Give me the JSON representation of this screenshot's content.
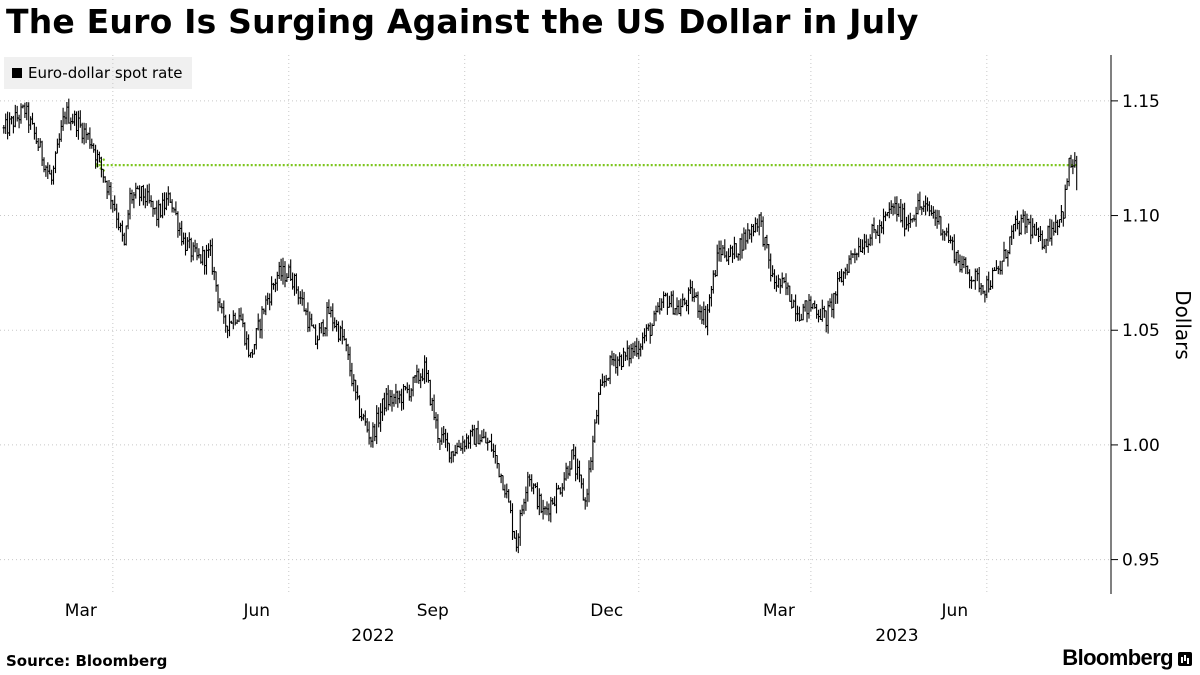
{
  "chart_data": {
    "type": "line",
    "title": "The Euro Is Surging Against the US Dollar in July",
    "ylabel": "Dollars",
    "ylim": [
      0.935,
      1.17
    ],
    "yticks": [
      0.95,
      1.0,
      1.05,
      1.1,
      1.15
    ],
    "ytick_labels": [
      "0.95",
      "1.00",
      "1.05",
      "1.10",
      "1.15"
    ],
    "xlim": [
      "2022-01-01",
      "2023-07-26"
    ],
    "xticks": [
      {
        "date": "2022-03-01",
        "label": "Mar"
      },
      {
        "date": "2022-06-01",
        "label": "Jun"
      },
      {
        "date": "2022-09-01",
        "label": "Sep"
      },
      {
        "date": "2022-12-01",
        "label": "Dec"
      },
      {
        "date": "2023-03-01",
        "label": "Mar"
      },
      {
        "date": "2023-06-01",
        "label": "Jun"
      }
    ],
    "year_labels": [
      {
        "date": "2022-07-15",
        "label": "2022"
      },
      {
        "date": "2023-04-15",
        "label": "2023"
      }
    ],
    "grid": true,
    "legend": "top-left",
    "series": [
      {
        "name": "Euro-dollar spot rate",
        "color": "#000000",
        "x": [
          "2022-01-03",
          "2022-01-14",
          "2022-01-20",
          "2022-01-28",
          "2022-02-04",
          "2022-02-10",
          "2022-02-18",
          "2022-02-24",
          "2022-03-02",
          "2022-03-07",
          "2022-03-10",
          "2022-03-17",
          "2022-03-24",
          "2022-03-31",
          "2022-04-07",
          "2022-04-14",
          "2022-04-21",
          "2022-04-28",
          "2022-05-06",
          "2022-05-12",
          "2022-05-19",
          "2022-05-26",
          "2022-06-02",
          "2022-06-09",
          "2022-06-15",
          "2022-06-22",
          "2022-06-30",
          "2022-07-07",
          "2022-07-14",
          "2022-07-21",
          "2022-07-28",
          "2022-08-04",
          "2022-08-11",
          "2022-08-18",
          "2022-08-25",
          "2022-09-01",
          "2022-09-08",
          "2022-09-15",
          "2022-09-22",
          "2022-09-28",
          "2022-10-04",
          "2022-10-12",
          "2022-10-20",
          "2022-10-27",
          "2022-11-03",
          "2022-11-10",
          "2022-11-17",
          "2022-11-24",
          "2022-12-01",
          "2022-12-08",
          "2022-12-15",
          "2022-12-22",
          "2022-12-29",
          "2023-01-05",
          "2023-01-12",
          "2023-01-19",
          "2023-01-26",
          "2023-02-02",
          "2023-02-09",
          "2023-02-16",
          "2023-02-23",
          "2023-03-02",
          "2023-03-09",
          "2023-03-16",
          "2023-03-23",
          "2023-03-30",
          "2023-04-06",
          "2023-04-13",
          "2023-04-20",
          "2023-04-26",
          "2023-05-04",
          "2023-05-11",
          "2023-05-18",
          "2023-05-25",
          "2023-05-31",
          "2023-06-08",
          "2023-06-15",
          "2023-06-22",
          "2023-06-29",
          "2023-07-06",
          "2023-07-11",
          "2023-07-14",
          "2023-07-18"
        ],
        "values": [
          1.137,
          1.146,
          1.133,
          1.115,
          1.145,
          1.141,
          1.132,
          1.118,
          1.104,
          1.086,
          1.108,
          1.109,
          1.1,
          1.108,
          1.089,
          1.081,
          1.083,
          1.052,
          1.058,
          1.038,
          1.06,
          1.074,
          1.075,
          1.06,
          1.045,
          1.058,
          1.045,
          1.017,
          1.003,
          1.019,
          1.02,
          1.025,
          1.033,
          1.005,
          0.997,
          1.002,
          1.004,
          0.999,
          0.982,
          0.957,
          0.988,
          0.97,
          0.98,
          0.995,
          0.975,
          1.02,
          1.037,
          1.038,
          1.044,
          1.052,
          1.064,
          1.059,
          1.066,
          1.055,
          1.085,
          1.083,
          1.091,
          1.099,
          1.072,
          1.068,
          1.058,
          1.061,
          1.055,
          1.071,
          1.084,
          1.09,
          1.094,
          1.104,
          1.097,
          1.104,
          1.101,
          1.092,
          1.079,
          1.073,
          1.069,
          1.077,
          1.094,
          1.097,
          1.088,
          1.096,
          1.102,
          1.122,
          1.123
        ]
      }
    ],
    "annotation": {
      "type": "dotted-arrow-line",
      "value": 1.122,
      "color": "#7dc61e",
      "from": "2023-07-18",
      "to": "2022-02-20"
    }
  },
  "footer": {
    "source": "Source: Bloomberg",
    "brand": "Bloomberg"
  }
}
